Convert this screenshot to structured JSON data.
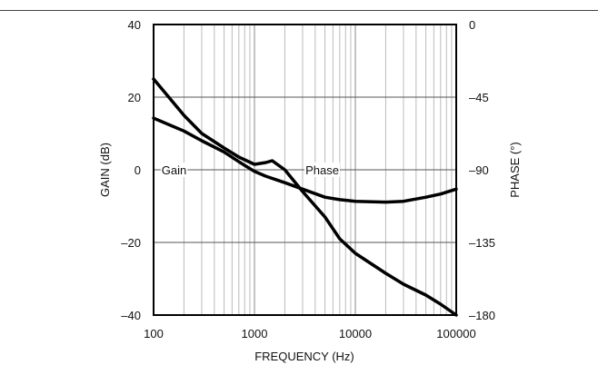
{
  "chart_data": {
    "type": "line",
    "title": "",
    "xlabel": "FREQUENCY (Hz)",
    "ylabel": "GAIN (dB)",
    "y2label": "PHASE (°)",
    "xscale": "log",
    "xlim": [
      100,
      100000
    ],
    "ylim": [
      -40,
      40
    ],
    "y2lim": [
      -180,
      0
    ],
    "grid": true,
    "legend": "none (inline labels)",
    "x_tick_labels": [
      "100",
      "1000",
      "10000",
      "100000"
    ],
    "y_tick_labels": [
      "40",
      "20",
      "0",
      "–20",
      "–40"
    ],
    "y2_tick_labels": [
      "0",
      "–45",
      "–90",
      "–135",
      "–180"
    ],
    "series": [
      {
        "name": "Gain",
        "axis": "left",
        "x": [
          100,
          200,
          300,
          500,
          700,
          1000,
          1300,
          1500,
          2000,
          3000,
          5000,
          7000,
          10000,
          20000,
          30000,
          50000,
          70000,
          100000
        ],
        "values": [
          25,
          15,
          10,
          6,
          3.5,
          1.5,
          2,
          2.5,
          0,
          -6,
          -13,
          -19,
          -23,
          -28.5,
          -31.5,
          -34.5,
          -37,
          -40
        ]
      },
      {
        "name": "Phase",
        "axis": "right",
        "x": [
          100,
          200,
          300,
          500,
          700,
          1000,
          1300,
          2000,
          3000,
          5000,
          7000,
          10000,
          20000,
          30000,
          50000,
          70000,
          100000
        ],
        "values": [
          -58,
          -66,
          -72,
          -79,
          -85,
          -91,
          -94,
          -98,
          -102,
          -107,
          -108.5,
          -109.5,
          -110,
          -109.5,
          -107,
          -105,
          -102
        ]
      }
    ],
    "annotations": [
      {
        "text": "Gain",
        "x": 120,
        "y": 0
      },
      {
        "text": "Phase",
        "x": 3200,
        "y": 0
      }
    ]
  }
}
